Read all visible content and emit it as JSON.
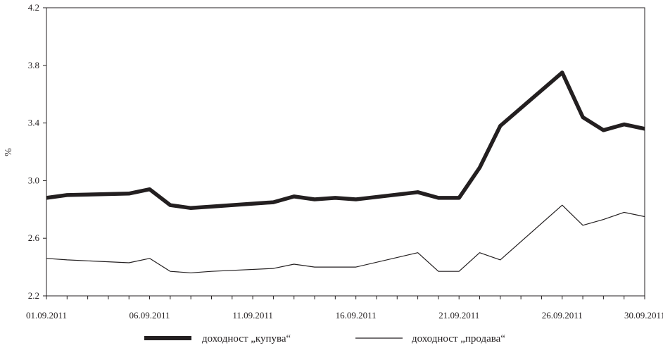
{
  "chart_data": {
    "type": "line",
    "ylabel": "%",
    "ylim": [
      2.2,
      4.2
    ],
    "yticks": [
      "2.2",
      "2.6",
      "3.0",
      "3.4",
      "3.8",
      "4.2"
    ],
    "xlim": [
      "01.09.2011",
      "30.09.2011"
    ],
    "xticks": [
      "01.09.2011",
      "06.09.2011",
      "11.09.2011",
      "16.09.2011",
      "21.09.2011",
      "26.09.2011",
      "30.09.2011"
    ],
    "grid": false,
    "legend_position": "bottom",
    "series": [
      {
        "name": "доходност „купува“",
        "color": "#231f20",
        "style": "thick",
        "x": [
          "01.09.2011",
          "02.09.2011",
          "05.09.2011",
          "06.09.2011",
          "07.09.2011",
          "08.09.2011",
          "09.09.2011",
          "12.09.2011",
          "13.09.2011",
          "14.09.2011",
          "15.09.2011",
          "16.09.2011",
          "19.09.2011",
          "20.09.2011",
          "21.09.2011",
          "22.09.2011",
          "23.09.2011",
          "26.09.2011",
          "27.09.2011",
          "28.09.2011",
          "29.09.2011",
          "30.09.2011"
        ],
        "values": [
          2.88,
          2.9,
          2.91,
          2.94,
          2.83,
          2.81,
          2.82,
          2.85,
          2.89,
          2.87,
          2.88,
          2.87,
          2.92,
          2.88,
          2.88,
          3.09,
          3.38,
          3.75,
          3.44,
          3.35,
          3.39,
          3.36
        ]
      },
      {
        "name": "доходност „продава“",
        "color": "#231f20",
        "style": "thin",
        "x": [
          "01.09.2011",
          "02.09.2011",
          "05.09.2011",
          "06.09.2011",
          "07.09.2011",
          "08.09.2011",
          "09.09.2011",
          "12.09.2011",
          "13.09.2011",
          "14.09.2011",
          "15.09.2011",
          "16.09.2011",
          "19.09.2011",
          "20.09.2011",
          "21.09.2011",
          "22.09.2011",
          "23.09.2011",
          "26.09.2011",
          "27.09.2011",
          "28.09.2011",
          "29.09.2011",
          "30.09.2011"
        ],
        "values": [
          2.46,
          2.45,
          2.43,
          2.46,
          2.37,
          2.36,
          2.37,
          2.39,
          2.42,
          2.4,
          2.4,
          2.4,
          2.5,
          2.37,
          2.37,
          2.5,
          2.45,
          2.83,
          2.69,
          2.73,
          2.78,
          2.75
        ]
      }
    ]
  }
}
